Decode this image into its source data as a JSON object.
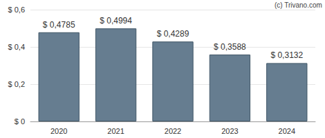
{
  "chart_data": {
    "type": "bar",
    "annotations": [
      "(c) Trivano.com"
    ],
    "categories": [
      "2020",
      "2021",
      "2022",
      "2023",
      "2024"
    ],
    "values": [
      0.4785,
      0.4994,
      0.4289,
      0.3588,
      0.3132
    ],
    "value_labels": [
      "$ 0,4785",
      "$ 0,4994",
      "$ 0,4289",
      "$ 0,3588",
      "$ 0,3132"
    ],
    "data_labels": true,
    "color": "#667d90",
    "ylim": [
      0,
      0.6
    ],
    "yticks": [
      {
        "value": 0,
        "label": "$ 0"
      },
      {
        "value": 0.2,
        "label": "$ 0,2"
      },
      {
        "value": 0.4,
        "label": "$ 0,4"
      },
      {
        "value": 0.6,
        "label": "$ 0,6"
      }
    ],
    "grid": true
  }
}
